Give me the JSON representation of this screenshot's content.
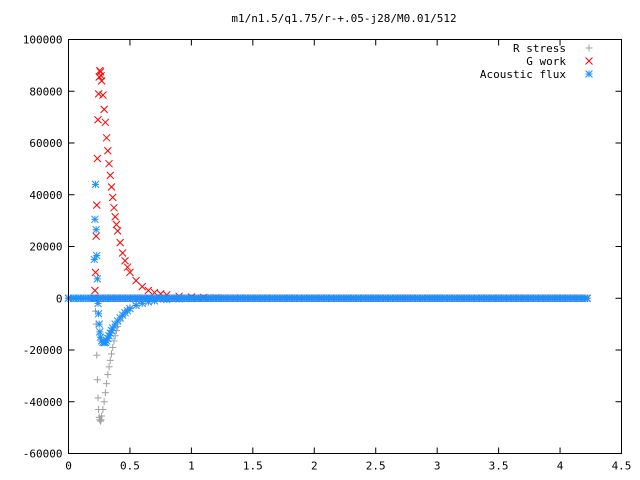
{
  "chart_data": {
    "type": "scatter",
    "title": "m1/n1.5/q1.75/r-+.05-j28/M0.01/512",
    "xlabel": "",
    "ylabel": "",
    "xlim": [
      0,
      4.5
    ],
    "ylim": [
      -60000,
      100000
    ],
    "xticks": [
      0,
      0.5,
      1,
      1.5,
      2,
      2.5,
      3,
      3.5,
      4,
      4.5
    ],
    "yticks": [
      -60000,
      -40000,
      -20000,
      0,
      20000,
      40000,
      60000,
      80000,
      100000
    ],
    "xtick_labels": [
      "0",
      "0.5",
      "1",
      "1.5",
      "2",
      "2.5",
      "3",
      "3.5",
      "4",
      "4.5"
    ],
    "ytick_labels": [
      "-60000",
      "-40000",
      "-20000",
      "0",
      "20000",
      "40000",
      "60000",
      "80000",
      "100000"
    ],
    "grid": false,
    "legend_position": "top-right",
    "series": [
      {
        "name": "R stress",
        "marker": "plus",
        "color": "#a0a0a0",
        "x": [
          0.2,
          0.21,
          0.22,
          0.225,
          0.23,
          0.235,
          0.24,
          0.245,
          0.25,
          0.255,
          0.26,
          0.265,
          0.27,
          0.28,
          0.29,
          0.3,
          0.31,
          0.32,
          0.33,
          0.34,
          0.35,
          0.36,
          0.37,
          0.38,
          0.39,
          0.4,
          0.42,
          0.44,
          0.46,
          0.48,
          0.5,
          0.55,
          0.6,
          0.65,
          0.7,
          0.75,
          0.8,
          0.9,
          1.0,
          1.1,
          1.2,
          1.4,
          1.6,
          1.8,
          2.0,
          2.5,
          3.0,
          3.5,
          4.0,
          4.22
        ],
        "y": [
          0,
          0,
          -5000,
          -10000,
          -22000,
          -31500,
          -38500,
          -43000,
          -46000,
          -47000,
          -47500,
          -47000,
          -45500,
          -43000,
          -40000,
          -36500,
          -33000,
          -29500,
          -26500,
          -24000,
          -21500,
          -19000,
          -16500,
          -14500,
          -12500,
          -11000,
          -8800,
          -7000,
          -5600,
          -4500,
          -3500,
          -2200,
          -1400,
          -900,
          -600,
          -400,
          -250,
          -100,
          -40,
          -15,
          0,
          0,
          0,
          0,
          0,
          0,
          0,
          0,
          0,
          0
        ]
      },
      {
        "name": "G work",
        "marker": "cross",
        "color": "#ff0000",
        "x": [
          0.2,
          0.21,
          0.215,
          0.22,
          0.225,
          0.23,
          0.235,
          0.24,
          0.245,
          0.25,
          0.255,
          0.26,
          0.265,
          0.27,
          0.28,
          0.29,
          0.3,
          0.31,
          0.32,
          0.33,
          0.34,
          0.35,
          0.36,
          0.37,
          0.38,
          0.39,
          0.4,
          0.42,
          0.44,
          0.46,
          0.48,
          0.5,
          0.55,
          0.6,
          0.65,
          0.7,
          0.75,
          0.8,
          0.9,
          1.0,
          1.1,
          1.2,
          1.4,
          1.6,
          1.8,
          2.0,
          2.5,
          3.0,
          3.5,
          4.0,
          4.22
        ],
        "y": [
          0,
          0,
          3000,
          10000,
          24000,
          36000,
          54000,
          69000,
          79000,
          85500,
          88000,
          87500,
          86000,
          84000,
          78500,
          73000,
          68000,
          62000,
          57000,
          52000,
          47500,
          43000,
          39000,
          35000,
          31500,
          28500,
          26000,
          21500,
          17500,
          14500,
          12000,
          10000,
          6800,
          4500,
          3000,
          2200,
          1700,
          1300,
          800,
          500,
          300,
          200,
          80,
          30,
          10,
          0,
          0,
          0,
          0,
          0,
          0
        ]
      },
      {
        "name": "Acoustic flux",
        "marker": "star",
        "color": "#1e90ff",
        "x": [
          0.0,
          0.1,
          0.2,
          0.21,
          0.215,
          0.22,
          0.225,
          0.23,
          0.235,
          0.24,
          0.245,
          0.25,
          0.255,
          0.26,
          0.27,
          0.28,
          0.29,
          0.3,
          0.31,
          0.32,
          0.33,
          0.34,
          0.35,
          0.36,
          0.38,
          0.4,
          0.42,
          0.44,
          0.46,
          0.48,
          0.5,
          0.55,
          0.6,
          0.65,
          0.7,
          0.8,
          0.9,
          1.0,
          1.2,
          1.4,
          1.6,
          1.8,
          2.0,
          2.5,
          3.0,
          3.5,
          4.0,
          4.22
        ],
        "y": [
          0,
          0,
          0,
          15000,
          30500,
          44000,
          26500,
          16500,
          7500,
          -2000,
          -6000,
          -10000,
          -13000,
          -15000,
          -16500,
          -17000,
          -17200,
          -17000,
          -16500,
          -15500,
          -14500,
          -13500,
          -12500,
          -11500,
          -10000,
          -8800,
          -7600,
          -6500,
          -5600,
          -4800,
          -4000,
          -2800,
          -2000,
          -1400,
          -1000,
          -500,
          -250,
          -120,
          -40,
          0,
          0,
          0,
          0,
          0,
          0,
          0,
          0,
          0
        ]
      }
    ]
  }
}
